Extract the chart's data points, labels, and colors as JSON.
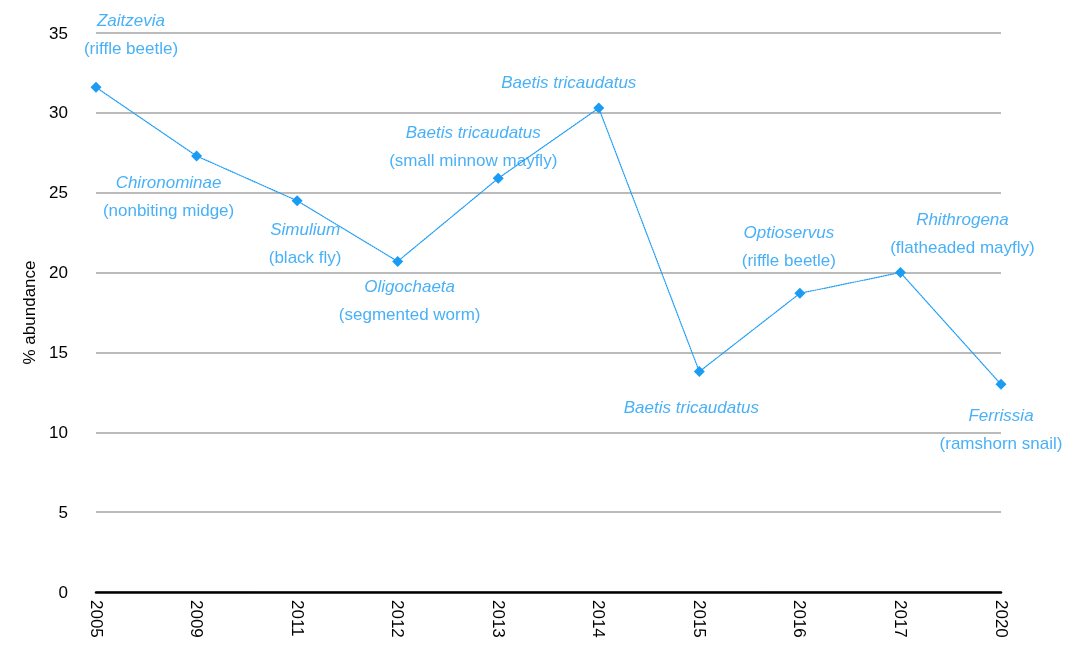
{
  "chart_data": {
    "type": "line",
    "ylabel": "% abundance",
    "categories": [
      "2005",
      "2009",
      "2011",
      "2012",
      "2013",
      "2014",
      "2015",
      "2016",
      "2017",
      "2020"
    ],
    "series": [
      {
        "color": "#1a9cf5",
        "values": [
          31.6,
          27.3,
          24.5,
          20.7,
          25.9,
          30.3,
          13.8,
          18.7,
          20.0,
          13.0
        ]
      }
    ],
    "ylim": [
      0,
      35
    ],
    "yticks": [
      0,
      5,
      10,
      15,
      20,
      25,
      30,
      35
    ],
    "grid": "y",
    "marker": "diamond",
    "line_style": "dotted",
    "annotations": [
      {
        "text": "Zaitzevia\n(riffle beetle)",
        "x": "2005",
        "y": 31.6
      },
      {
        "text": "Chironominae\n(nonbiting midge)",
        "x": "2009",
        "y": 27.3
      },
      {
        "text": "Simulium\n(black fly)",
        "x": "2011",
        "y": 24.5
      },
      {
        "text": "Oligochaeta\n(segmented worm)",
        "x": "2012",
        "y": 20.7
      },
      {
        "text": "Baetis tricaudatus\n(small minnow mayfly)",
        "x": "2013",
        "y": 25.9
      },
      {
        "text": "Baetis tricaudatus",
        "x": "2014",
        "y": 30.3
      },
      {
        "text": "Baetis tricaudatus",
        "x": "2015",
        "y": 13.8
      },
      {
        "text": "Optioservus\n(riffle beetle)",
        "x": "2016",
        "y": 18.7
      },
      {
        "text": "Rhithrogena\n(flatheaded mayfly)",
        "x": "2017",
        "y": 20.0
      },
      {
        "text": "Ferrissia\n(ramshorn snail)",
        "x": "2020",
        "y": 13.0
      }
    ]
  }
}
